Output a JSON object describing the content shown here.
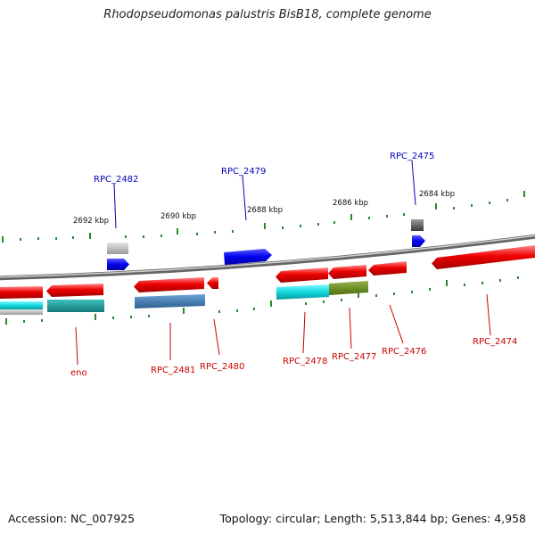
{
  "title": "Rhodopseudomonas palustris BisB18, complete genome",
  "footer": {
    "accession": "Accession: NC_007925",
    "summary": "Topology: circular; Length: 5,513,844 bp; Genes: 4,958"
  },
  "colors": {
    "backbone": "#8a8a8a",
    "forward_label": "#0000bb",
    "reverse_label": "#cc0000",
    "tick": "#2a8a2a"
  },
  "scale_labels": [
    "2692 kbp",
    "2690 kbp",
    "2688 kbp",
    "2686 kbp",
    "2684 kbp"
  ],
  "gene_labels": {
    "forward": [
      "RPC_2482",
      "RPC_2479",
      "RPC_2475"
    ],
    "reverse": [
      "eno",
      "RPC_2481",
      "RPC_2480",
      "RPC_2478",
      "RPC_2477",
      "RPC_2476",
      "RPC_2474"
    ]
  }
}
